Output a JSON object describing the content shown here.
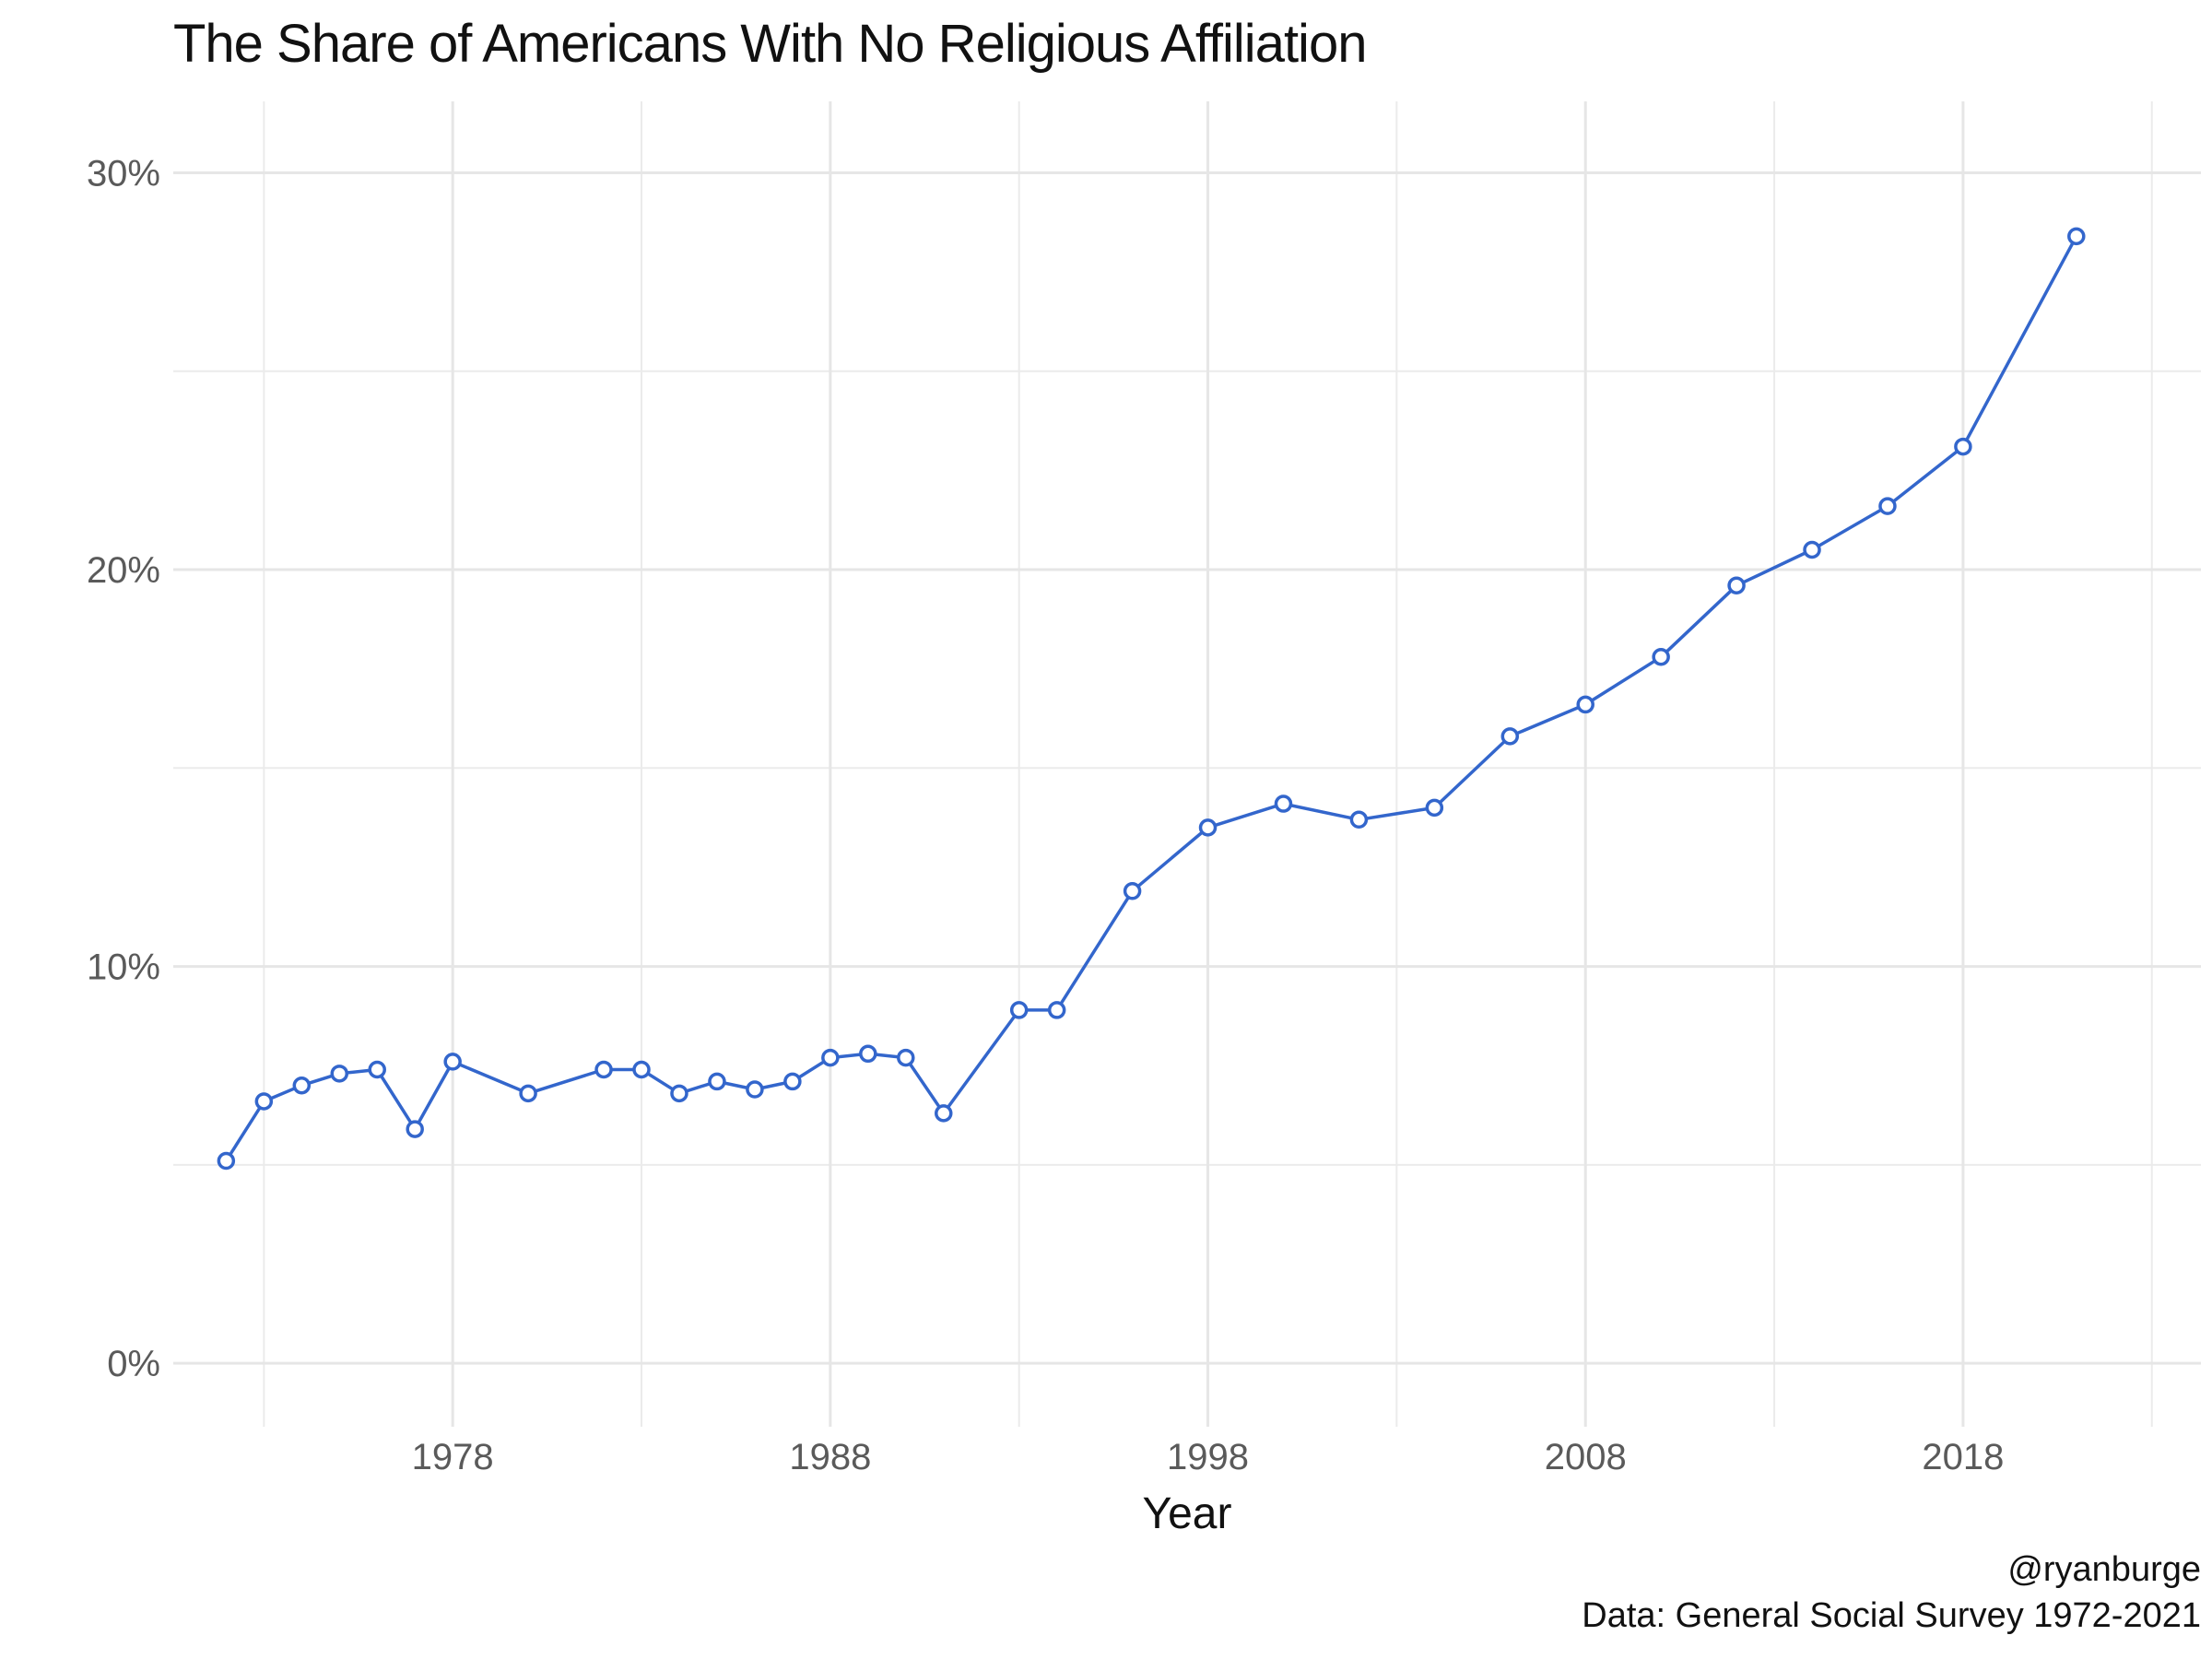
{
  "chart_data": {
    "type": "line",
    "title": "The Share of Americans With No Religious Affiliation",
    "xlabel": "Year",
    "ylabel": "",
    "x_ticks": [
      1978,
      1988,
      1998,
      2008,
      2018
    ],
    "y_ticks": [
      0,
      10,
      20,
      30
    ],
    "y_tick_labels": [
      "0%",
      "10%",
      "20%",
      "30%"
    ],
    "xlim": [
      1970.6,
      2024.3
    ],
    "ylim": [
      -1.6,
      31.8
    ],
    "grid": true,
    "legend": "none",
    "line_color": "#3366CC",
    "series": [
      {
        "x": [
          1972,
          1973,
          1974,
          1975,
          1976,
          1977,
          1978,
          1980,
          1982,
          1983,
          1984,
          1985,
          1986,
          1987,
          1988,
          1989,
          1990,
          1991,
          1993,
          1994,
          1996,
          1998,
          2000,
          2002,
          2004,
          2006,
          2008,
          2010,
          2012,
          2014,
          2016,
          2018,
          2021
        ],
        "y": [
          5.1,
          6.6,
          7.0,
          7.3,
          7.4,
          5.9,
          7.6,
          6.8,
          7.4,
          7.4,
          6.8,
          7.1,
          6.9,
          7.1,
          7.7,
          7.8,
          7.7,
          6.3,
          8.9,
          8.9,
          11.9,
          13.5,
          14.1,
          13.7,
          14.0,
          15.8,
          16.6,
          17.8,
          19.6,
          20.5,
          21.6,
          23.1,
          28.4
        ]
      }
    ]
  },
  "caption": {
    "handle": "@ryanburge",
    "source": "Data: General Social Survey 1972-2021"
  }
}
